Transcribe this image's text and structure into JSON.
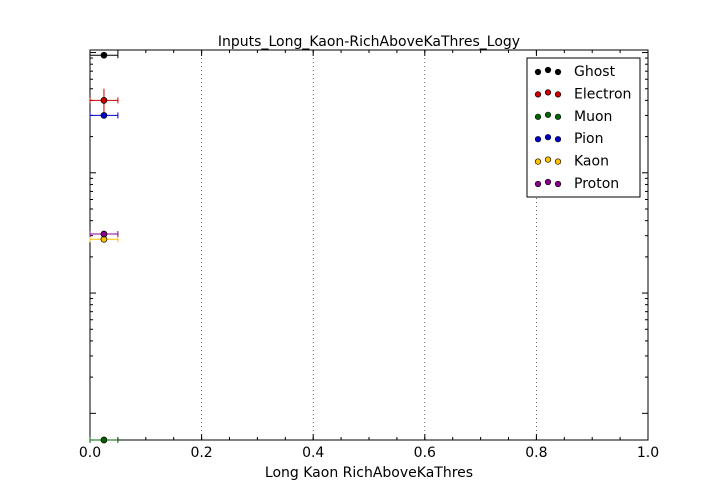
{
  "chart_data": {
    "type": "scatter",
    "title": "Inputs_Long_Kaon-RichAboveKaThres_Logy",
    "xlabel": "Long Kaon RichAboveKaThres",
    "ylabel": "",
    "xlim": [
      0.0,
      1.0
    ],
    "y_scale": "log",
    "grid": "x-dotted",
    "legend_position": "top-right",
    "x_ticks": [
      "0.0",
      "0.2",
      "0.4",
      "0.6",
      "0.8",
      "1.0"
    ],
    "series": [
      {
        "name": "Ghost",
        "color": "#000000",
        "x": 0.025,
        "y": 0.95,
        "xerr": 0.025,
        "yerr_frac": 0.0
      },
      {
        "name": "Electron",
        "color": "#cc0000",
        "x": 0.025,
        "y": 0.4,
        "xerr": 0.025,
        "yerr_frac": 0.25
      },
      {
        "name": "Muon",
        "color": "#006400",
        "x": 0.025,
        "y": 0.0006,
        "xerr": 0.025,
        "yerr_frac": 0.0
      },
      {
        "name": "Pion",
        "color": "#0000cc",
        "x": 0.025,
        "y": 0.3,
        "xerr": 0.025,
        "yerr_frac": 0.02
      },
      {
        "name": "Kaon",
        "color": "#ffbf00",
        "x": 0.025,
        "y": 0.028,
        "xerr": 0.025,
        "yerr_frac": 0.03
      },
      {
        "name": "Proton",
        "color": "#8b008b",
        "x": 0.025,
        "y": 0.031,
        "xerr": 0.025,
        "yerr_frac": 0.05
      }
    ]
  }
}
